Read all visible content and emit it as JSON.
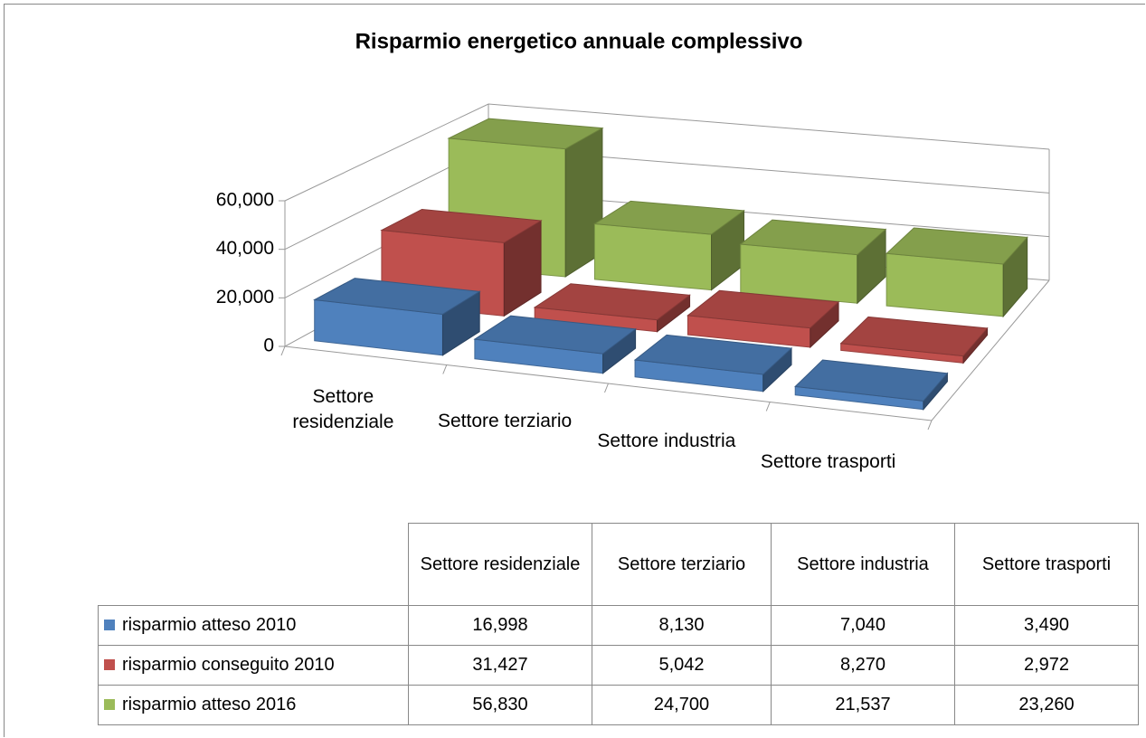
{
  "chart_data": {
    "type": "bar3d",
    "title": "Risparmio energetico annuale complessivo",
    "categories": [
      "Settore residenziale",
      "Settore terziario",
      "Settore industria",
      "Settore trasporti"
    ],
    "series": [
      {
        "name": "risparmio atteso 2010",
        "color": "#4f81bd",
        "values": [
          16998,
          8130,
          7040,
          3490
        ],
        "value_labels": [
          "16,998",
          "8,130",
          "7,040",
          "3,490"
        ]
      },
      {
        "name": "risparmio conseguito 2010",
        "color": "#c0504d",
        "values": [
          31427,
          5042,
          8270,
          2972
        ],
        "value_labels": [
          "31,427",
          "5,042",
          "8,270",
          "2,972"
        ]
      },
      {
        "name": "risparmio atteso 2016",
        "color": "#9bbb59",
        "values": [
          56830,
          24700,
          21537,
          23260
        ],
        "value_labels": [
          "56,830",
          "24,700",
          "21,537",
          "23,260"
        ]
      }
    ],
    "ylim": [
      0,
      60000
    ],
    "yticks": [
      0,
      {
        "value": 20000,
        "label": "20,000"
      },
      {
        "value": 40000,
        "label": "40,000"
      },
      {
        "value": 60000,
        "label": "60,000"
      }
    ],
    "grid": true
  }
}
